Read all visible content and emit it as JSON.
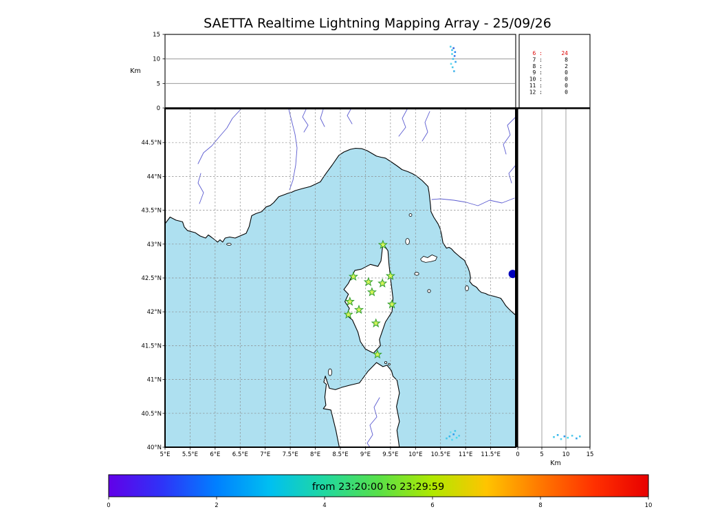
{
  "title": "SAETTA Realtime Lightning Mapping Array - 25/09/26",
  "colors": {
    "sea": "#aee0f0",
    "land": "#ffffff",
    "coastline": "#000000",
    "river": "#5a5ad0",
    "grid": "#8a8a8a",
    "station_fill": "#d4f45a",
    "station_edge": "#2f9e2f",
    "frame": "#000000",
    "stats_highlight": "#dd0000",
    "text": "#000000"
  },
  "stats_panel": {
    "rows": [
      {
        "hour": "6",
        "count": "24",
        "color": "#dd0000"
      },
      {
        "hour": "7",
        "count": "8",
        "color": "#000000"
      },
      {
        "hour": "8",
        "count": "2",
        "color": "#000000"
      },
      {
        "hour": "9",
        "count": "0",
        "color": "#000000"
      },
      {
        "hour": "10",
        "count": "0",
        "color": "#000000"
      },
      {
        "hour": "11",
        "count": "0",
        "color": "#000000"
      },
      {
        "hour": "12",
        "count": "0",
        "color": "#000000"
      }
    ]
  },
  "chart_data": [
    {
      "type": "scatter",
      "name": "altitude-vs-longitude",
      "ylabel": "Km",
      "ylim": [
        0,
        15
      ],
      "yticks": [
        0,
        5,
        10,
        15
      ],
      "xlim": [
        5,
        12
      ],
      "grid": "horizontal",
      "points": [
        [
          10.7,
          12.5,
          "#55cce8"
        ],
        [
          10.76,
          12.2,
          "#3366dd"
        ],
        [
          10.73,
          11.8,
          "#44c8ec"
        ],
        [
          10.79,
          11.4,
          "#2b8cee"
        ],
        [
          10.73,
          11.0,
          "#55d4ea"
        ],
        [
          10.78,
          10.6,
          "#3a7cec"
        ],
        [
          10.75,
          10.0,
          "#46c6ea"
        ],
        [
          10.8,
          9.4,
          "#35a8ec"
        ],
        [
          10.71,
          9.0,
          "#60d8ee"
        ],
        [
          10.74,
          8.3,
          "#50c8ea"
        ],
        [
          10.77,
          7.5,
          "#44b4ea"
        ]
      ]
    },
    {
      "type": "map-scatter",
      "name": "geographic-map",
      "lon_range": [
        5,
        12
      ],
      "lat_range": [
        40,
        45
      ],
      "lon_tick_values": [
        5,
        5.5,
        6,
        6.5,
        7,
        7.5,
        8,
        8.5,
        9,
        9.5,
        10,
        10.5,
        11,
        11.5
      ],
      "lon_tick_labels": [
        "5°E",
        "5.5°E",
        "6°E",
        "6.5°E",
        "7°E",
        "7.5°E",
        "8°E",
        "8.5°E",
        "9°E",
        "9.5°E",
        "10°E",
        "10.5°E",
        "11°E",
        "11.5°E"
      ],
      "lat_tick_values": [
        44.5,
        44,
        43.5,
        43,
        42.5,
        42,
        41.5,
        41,
        40.5,
        40
      ],
      "lat_tick_labels": [
        "44.5°N",
        "44°N",
        "43.5°N",
        "43°N",
        "42.5°N",
        "42°N",
        "41.5°N",
        "41°N",
        "40.5°N",
        "40°N"
      ],
      "stations": [
        [
          9.35,
          42.99
        ],
        [
          8.76,
          42.52
        ],
        [
          9.06,
          42.44
        ],
        [
          9.34,
          42.42
        ],
        [
          9.5,
          42.53
        ],
        [
          9.13,
          42.29
        ],
        [
          8.69,
          42.15
        ],
        [
          9.53,
          42.11
        ],
        [
          8.66,
          41.96
        ],
        [
          8.87,
          42.03
        ],
        [
          9.21,
          41.83
        ],
        [
          9.24,
          41.37
        ]
      ],
      "points": [
        [
          10.62,
          40.13,
          "#46c8ea"
        ],
        [
          10.68,
          40.16,
          "#35b4ec"
        ],
        [
          10.73,
          40.11,
          "#58d6ee"
        ],
        [
          10.76,
          40.19,
          "#2b9cee"
        ],
        [
          10.82,
          40.14,
          "#48dcee"
        ],
        [
          10.87,
          40.17,
          "#56ccec"
        ],
        [
          10.7,
          40.22,
          "#68dcee"
        ],
        [
          10.79,
          40.24,
          "#46c8ea"
        ]
      ],
      "flash_marker": {
        "lon": 11.94,
        "lat": 42.56,
        "color": "#0000bb",
        "radius": 6
      }
    },
    {
      "type": "scatter",
      "name": "altitude-vs-latitude",
      "xlabel": "Km",
      "xlim": [
        0,
        15
      ],
      "xticks": [
        0,
        5,
        10,
        15
      ],
      "ylim": [
        40,
        45
      ],
      "grid": "vertical",
      "points": [
        [
          7.5,
          40.15,
          "#46c8ea"
        ],
        [
          8.3,
          40.18,
          "#35b4ec"
        ],
        [
          9.0,
          40.12,
          "#58d6ee"
        ],
        [
          9.7,
          40.16,
          "#2b9cee"
        ],
        [
          10.4,
          40.14,
          "#48dcee"
        ],
        [
          11.3,
          40.17,
          "#56ccec"
        ],
        [
          12.2,
          40.13,
          "#35a8ec"
        ],
        [
          12.9,
          40.16,
          "#46c8ea"
        ]
      ]
    },
    {
      "type": "colorbar",
      "name": "time-colorbar",
      "label": "from 23:20:00 to 23:29:59",
      "range": [
        0,
        10
      ],
      "tick_values": [
        0,
        2,
        4,
        6,
        8,
        10
      ],
      "tick_labels": [
        "0",
        "2",
        "4",
        "6",
        "8",
        "10"
      ],
      "gradient_stops": [
        "#6200e8",
        "#2e34f8",
        "#0080ff",
        "#00c0f0",
        "#20d8a0",
        "#58e048",
        "#b0e800",
        "#ffc400",
        "#ff7800",
        "#ff3000",
        "#e80000"
      ]
    }
  ]
}
